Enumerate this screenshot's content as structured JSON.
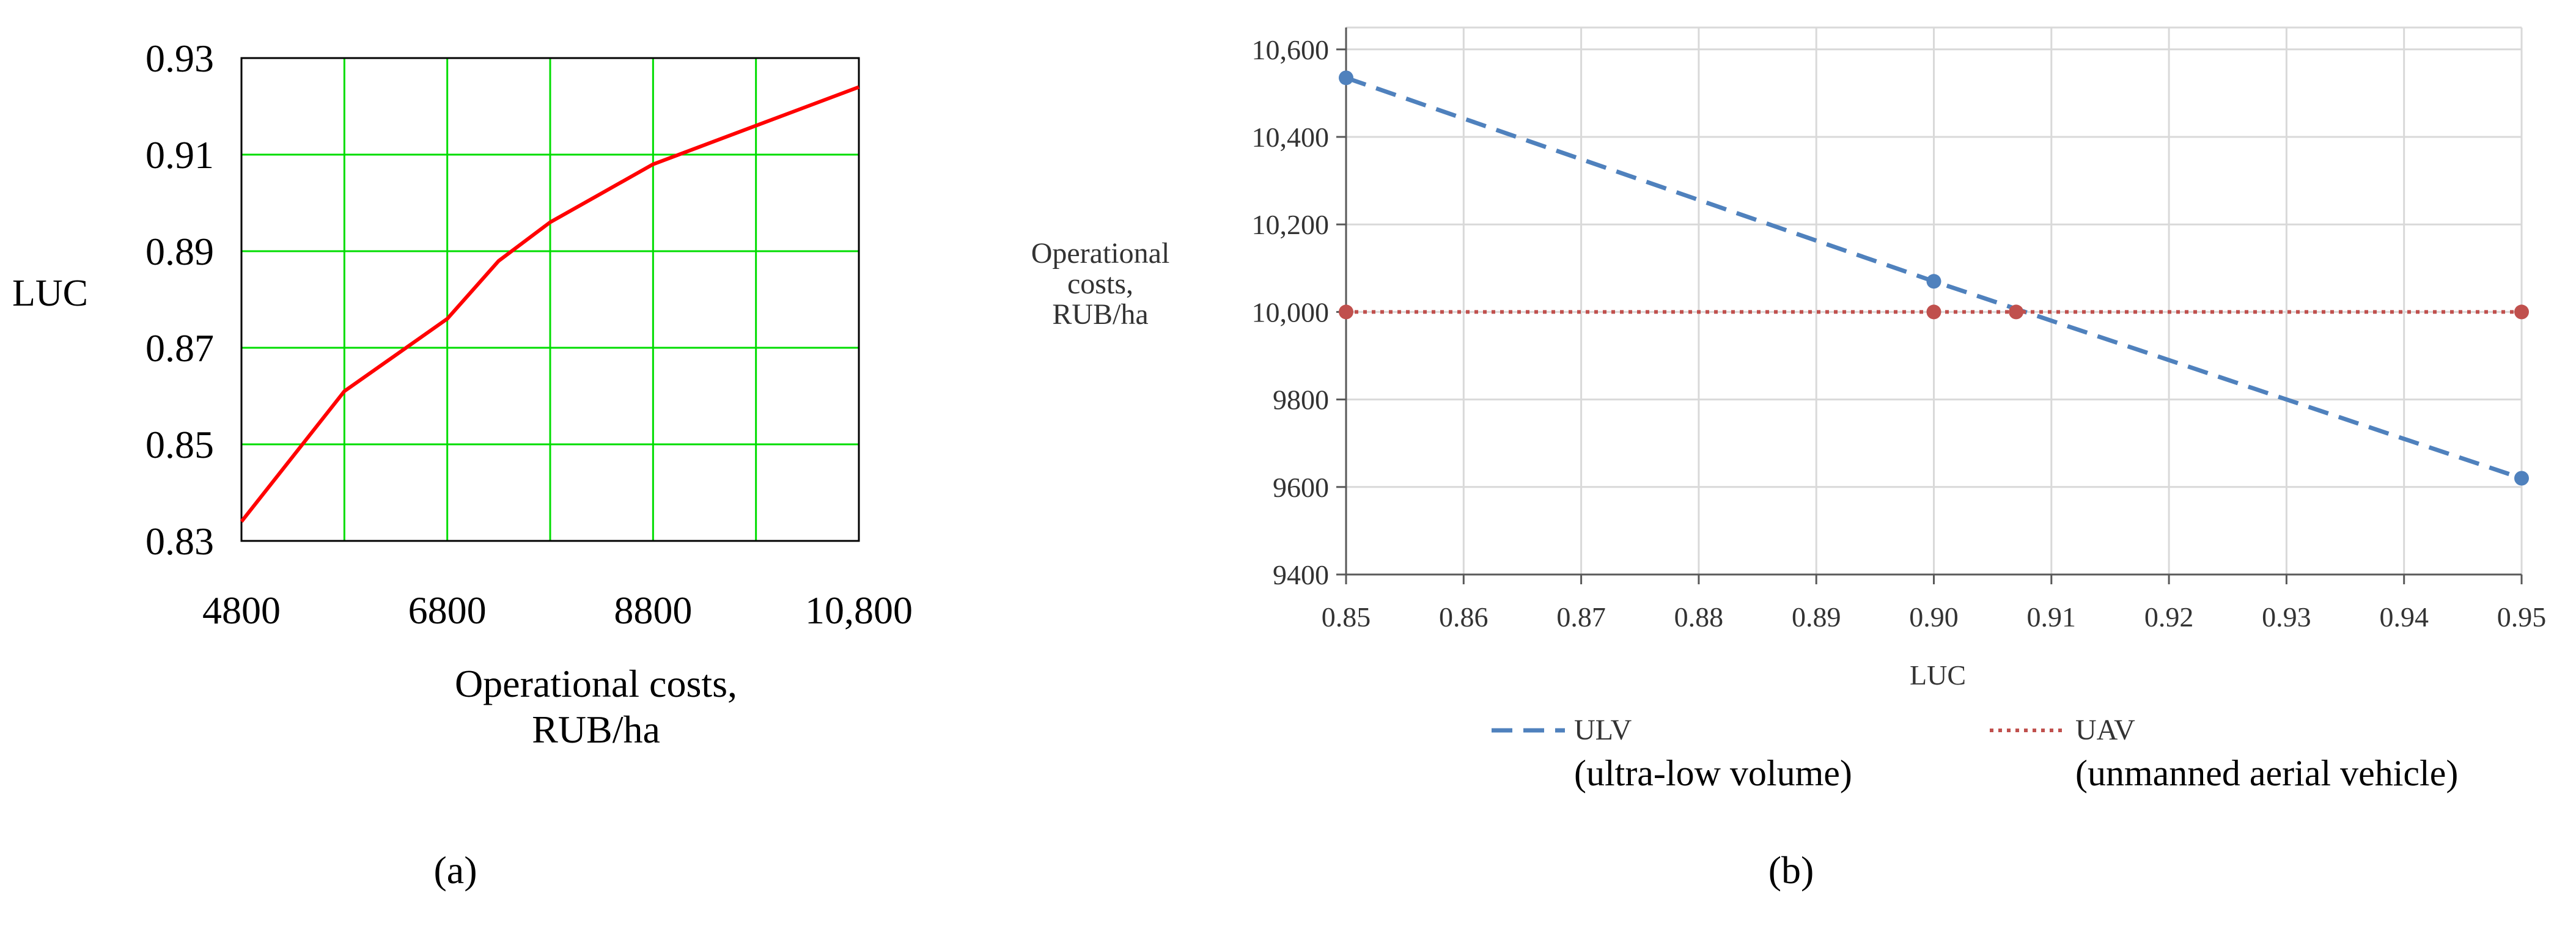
{
  "chart_data": [
    {
      "type": "line",
      "panel_label": "(a)",
      "xlabel_lines": [
        "Operational costs,",
        "RUB/ha"
      ],
      "ylabel": "LUC",
      "xlim": [
        4800,
        10800
      ],
      "ylim": [
        0.83,
        0.93
      ],
      "x_ticks": [
        4800,
        6800,
        8800,
        10800
      ],
      "x_tick_labels": [
        "4800",
        "6800",
        "8800",
        "10,800"
      ],
      "y_ticks": [
        0.83,
        0.85,
        0.87,
        0.89,
        0.91,
        0.93
      ],
      "y_tick_labels": [
        "0.83",
        "0.85",
        "0.87",
        "0.89",
        "0.91",
        "0.93"
      ],
      "x_grid": [
        5800,
        6800,
        7800,
        8800,
        9800,
        10800
      ],
      "grid": true,
      "series": [
        {
          "color": "#ff0000",
          "x": [
            4800,
            5800,
            6800,
            7300,
            7800,
            8300,
            8800,
            9300,
            9800,
            10300,
            10800
          ],
          "y": [
            0.834,
            0.861,
            0.876,
            0.888,
            0.896,
            0.902,
            0.908,
            0.912,
            0.916,
            0.92,
            0.924
          ]
        }
      ]
    },
    {
      "type": "line",
      "panel_label": "(b)",
      "xlabel": "LUC",
      "ylabel_lines": [
        "Operational",
        "costs,",
        "RUB/ha"
      ],
      "xlim": [
        0.85,
        0.95
      ],
      "ylim": [
        9400,
        10650
      ],
      "x_ticks": [
        0.85,
        0.86,
        0.87,
        0.88,
        0.89,
        0.9,
        0.91,
        0.92,
        0.93,
        0.94,
        0.95
      ],
      "x_tick_labels": [
        "0.85",
        "0.86",
        "0.87",
        "0.88",
        "0.89",
        "0.90",
        "0.91",
        "0.92",
        "0.93",
        "0.94",
        "0.95"
      ],
      "y_ticks": [
        9400,
        9600,
        9800,
        10000,
        10200,
        10400,
        10600
      ],
      "y_tick_labels": [
        "9400",
        "9600",
        "9800",
        "10,000",
        "10,200",
        "10,400",
        "10,600"
      ],
      "grid": true,
      "legend_placement": "bottom",
      "series": [
        {
          "name": "ULV",
          "description": "(ultra-low volume)",
          "color": "#4f81bd",
          "style": "dashed",
          "x": [
            0.85,
            0.9,
            0.95
          ],
          "y": [
            10535,
            10070,
            9620
          ],
          "marker_x": [
            0.85,
            0.9,
            0.95
          ],
          "marker_y": [
            10535,
            10070,
            9620
          ]
        },
        {
          "name": "UAV",
          "description": "(unmanned aerial vehicle)",
          "color": "#c0504d",
          "style": "dotted",
          "x": [
            0.85,
            0.95
          ],
          "y": [
            10000,
            10000
          ],
          "marker_x": [
            0.85,
            0.9,
            0.907,
            0.95
          ],
          "marker_y": [
            10000,
            10000,
            10000,
            10000
          ]
        }
      ]
    }
  ]
}
